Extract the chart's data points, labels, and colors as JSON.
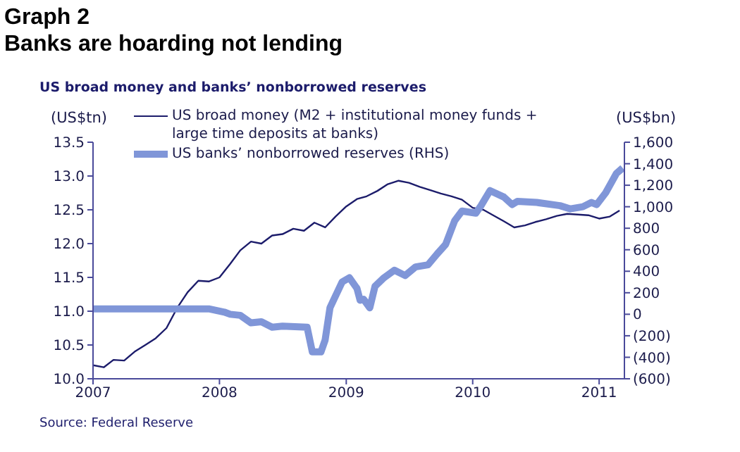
{
  "chart_data": {
    "type": "line",
    "title": "Graph 2",
    "subtitle": "Banks are hoarding not lending",
    "annotations": [
      "US broad money and banks’ nonborrowed reserves",
      "Source: Federal Reserve"
    ],
    "ylabel": "(US$tn)",
    "y2label": "(US$bn)",
    "xlim": [
      "2007-01-01",
      "2011-03-15"
    ],
    "xticks": [
      "2007",
      "2008",
      "2009",
      "2010",
      "2011"
    ],
    "ylim": [
      10,
      13.5
    ],
    "yticks": [
      {
        "value": 10,
        "label": "10.0"
      },
      10.5,
      {
        "value": 11,
        "label": "11.0"
      },
      11.5,
      {
        "value": 12,
        "label": "12.0"
      },
      12.5,
      {
        "value": 13,
        "label": "13.0"
      },
      13.5
    ],
    "y2lim": [
      -600,
      1600
    ],
    "y2ticks": [
      {
        "value": -600,
        "label": "(600)"
      },
      {
        "value": -400,
        "label": "(400)"
      },
      {
        "value": -200,
        "label": "(200)"
      },
      0,
      200,
      400,
      600,
      800,
      {
        "value": 1000,
        "label": "1,000"
      },
      {
        "value": 1200,
        "label": "1,200"
      },
      {
        "value": 1400,
        "label": "1,400"
      },
      {
        "value": 1600,
        "label": "1,600"
      }
    ],
    "legend": "top left",
    "marker": "none",
    "line_style": "solid",
    "series": [
      {
        "name": "US broad money (M2 + institutional money funds + large time deposits at banks)",
        "color": "#1c1c6b",
        "x": [
          "2007-01",
          "2007-02",
          "2007-03",
          "2007-04",
          "2007-05",
          "2007-06",
          "2007-07",
          "2007-08",
          "2007-09",
          "2007-10",
          "2007-11",
          "2007-12",
          "2008-01",
          "2008-02",
          "2008-03",
          "2008-04",
          "2008-05",
          "2008-06",
          "2008-07",
          "2008-08",
          "2008-09",
          "2008-10",
          "2008-11",
          "2008-12",
          "2009-01",
          "2009-02",
          "2009-03",
          "2009-04",
          "2009-05",
          "2009-06",
          "2009-07",
          "2009-08",
          "2009-09",
          "2009-10",
          "2009-11",
          "2009-12",
          "2010-01",
          "2010-02",
          "2010-03",
          "2010-04",
          "2010-05",
          "2010-06",
          "2010-07",
          "2010-08",
          "2010-09",
          "2010-10",
          "2010-11",
          "2010-12",
          "2011-01",
          "2011-02",
          "2011-03"
        ],
        "values": [
          10.2,
          10.17,
          10.28,
          10.27,
          10.4,
          10.5,
          10.6,
          10.75,
          11.05,
          11.28,
          11.45,
          11.44,
          11.5,
          11.7,
          11.9,
          12.03,
          12.0,
          12.12,
          12.14,
          12.22,
          12.19,
          12.31,
          12.24,
          12.4,
          12.55,
          12.66,
          12.7,
          12.78,
          12.88,
          12.93,
          12.9,
          12.84,
          12.79,
          12.74,
          12.7,
          12.65,
          12.53,
          12.5,
          12.42,
          12.33,
          12.24,
          12.27,
          12.32,
          12.36,
          12.41,
          12.44,
          12.43,
          12.42,
          12.37,
          12.4,
          12.49
        ]
      },
      {
        "name": "US banks’ nonborrowed reserves (RHS)",
        "color": "#8096d8",
        "axis": "y2",
        "x": [
          "2007-01-01",
          "2007-12-01",
          "2008-01-15",
          "2008-02-01",
          "2008-03-01",
          "2008-04-01",
          "2008-05-01",
          "2008-06-01",
          "2008-07-01",
          "2008-09-10",
          "2008-09-25",
          "2008-10-20",
          "2008-11-01",
          "2008-11-15",
          "2008-12-01",
          "2008-12-20",
          "2009-01-10",
          "2009-02-01",
          "2009-02-10",
          "2009-02-20",
          "2009-03-10",
          "2009-03-25",
          "2009-04-20",
          "2009-05-20",
          "2009-06-20",
          "2009-07-20",
          "2009-08-25",
          "2009-09-20",
          "2009-10-15",
          "2009-11-10",
          "2009-12-01",
          "2010-01-10",
          "2010-01-25",
          "2010-02-20",
          "2010-04-01",
          "2010-04-25",
          "2010-05-10",
          "2010-07-05",
          "2010-09-10",
          "2010-10-10",
          "2010-11-15",
          "2010-12-10",
          "2010-12-25",
          "2011-01-20",
          "2011-02-20",
          "2011-03-10"
        ],
        "values": [
          50,
          50,
          20,
          0,
          -10,
          -80,
          -70,
          -120,
          -110,
          -120,
          -350,
          -350,
          -240,
          60,
          170,
          300,
          340,
          240,
          130,
          140,
          60,
          260,
          340,
          410,
          360,
          440,
          460,
          560,
          650,
          870,
          960,
          940,
          1010,
          1150,
          1090,
          1020,
          1050,
          1040,
          1010,
          980,
          1000,
          1040,
          1020,
          1130,
          1310,
          1360
        ]
      }
    ]
  }
}
